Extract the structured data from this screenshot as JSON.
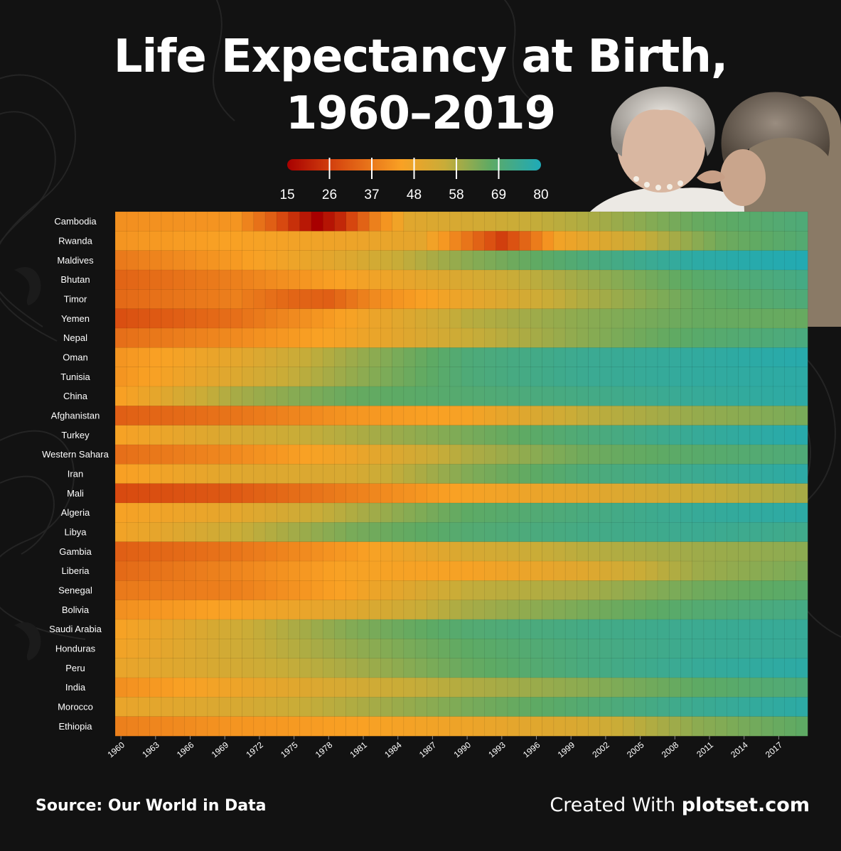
{
  "title": "Life Expectancy at Birth,\n1960–2019",
  "source_text": "Source: Our World in Data",
  "credit_prefix": "Created With ",
  "credit_brand": "plotset.com",
  "colors": {
    "background": "#121212",
    "scale": [
      "#a80000",
      "#d84a10",
      "#f9a124",
      "#c9ac38",
      "#5eaa64",
      "#1eaab8"
    ]
  },
  "chart_data": {
    "type": "heatmap",
    "x_ticks": [
      "1960",
      "1963",
      "1966",
      "1969",
      "1972",
      "1975",
      "1978",
      "1981",
      "1984",
      "1987",
      "1990",
      "1993",
      "1996",
      "1999",
      "2002",
      "2005",
      "2008",
      "2011",
      "2014",
      "2017"
    ],
    "x_start": 1960,
    "x_end": 2019,
    "legend_ticks": [
      "15",
      "26",
      "37",
      "48",
      "58",
      "69",
      "80"
    ],
    "color_range": [
      15,
      80
    ],
    "rows": [
      {
        "country": "Cambodia",
        "anchors": [
          [
            1960,
            41
          ],
          [
            1970,
            42
          ],
          [
            1973,
            32
          ],
          [
            1977,
            15
          ],
          [
            1979,
            22
          ],
          [
            1982,
            38
          ],
          [
            1985,
            50
          ],
          [
            2000,
            58
          ],
          [
            2010,
            66
          ],
          [
            2019,
            70
          ]
        ]
      },
      {
        "country": "Rwanda",
        "anchors": [
          [
            1960,
            42
          ],
          [
            1980,
            47
          ],
          [
            1986,
            49
          ],
          [
            1990,
            36
          ],
          [
            1993,
            26
          ],
          [
            1995,
            33
          ],
          [
            1998,
            46
          ],
          [
            2005,
            55
          ],
          [
            2012,
            65
          ],
          [
            2019,
            69
          ]
        ]
      },
      {
        "country": "Maldives",
        "anchors": [
          [
            1960,
            37
          ],
          [
            1970,
            43
          ],
          [
            1980,
            51
          ],
          [
            1990,
            62
          ],
          [
            2000,
            70
          ],
          [
            2010,
            77
          ],
          [
            2019,
            79
          ]
        ]
      },
      {
        "country": "Bhutan",
        "anchors": [
          [
            1960,
            33
          ],
          [
            1970,
            38
          ],
          [
            1980,
            45
          ],
          [
            1990,
            52
          ],
          [
            2000,
            60
          ],
          [
            2010,
            68
          ],
          [
            2019,
            72
          ]
        ]
      },
      {
        "country": "Timor",
        "anchors": [
          [
            1960,
            34
          ],
          [
            1970,
            38
          ],
          [
            1975,
            33
          ],
          [
            1978,
            32
          ],
          [
            1982,
            40
          ],
          [
            1990,
            48
          ],
          [
            2000,
            58
          ],
          [
            2010,
            66
          ],
          [
            2019,
            70
          ]
        ]
      },
      {
        "country": "Yemen",
        "anchors": [
          [
            1960,
            29
          ],
          [
            1970,
            35
          ],
          [
            1980,
            45
          ],
          [
            1990,
            57
          ],
          [
            2000,
            62
          ],
          [
            2010,
            66
          ],
          [
            2019,
            66
          ]
        ]
      },
      {
        "country": "Nepal",
        "anchors": [
          [
            1960,
            35
          ],
          [
            1970,
            40
          ],
          [
            1980,
            46
          ],
          [
            1990,
            55
          ],
          [
            2000,
            62
          ],
          [
            2010,
            68
          ],
          [
            2019,
            71
          ]
        ]
      },
      {
        "country": "Oman",
        "anchors": [
          [
            1960,
            42
          ],
          [
            1970,
            49
          ],
          [
            1980,
            60
          ],
          [
            1990,
            70
          ],
          [
            2000,
            74
          ],
          [
            2010,
            76
          ],
          [
            2019,
            78
          ]
        ]
      },
      {
        "country": "Tunisia",
        "anchors": [
          [
            1960,
            42
          ],
          [
            1970,
            51
          ],
          [
            1980,
            61
          ],
          [
            1990,
            70
          ],
          [
            2000,
            74
          ],
          [
            2010,
            76
          ],
          [
            2019,
            77
          ]
        ]
      },
      {
        "country": "China",
        "anchors": [
          [
            1960,
            44
          ],
          [
            1965,
            52
          ],
          [
            1970,
            59
          ],
          [
            1980,
            66
          ],
          [
            1990,
            69
          ],
          [
            2000,
            72
          ],
          [
            2010,
            75
          ],
          [
            2019,
            77
          ]
        ]
      },
      {
        "country": "Afghanistan",
        "anchors": [
          [
            1960,
            32
          ],
          [
            1970,
            36
          ],
          [
            1980,
            42
          ],
          [
            1990,
            45
          ],
          [
            2000,
            56
          ],
          [
            2010,
            61
          ],
          [
            2019,
            64
          ]
        ]
      },
      {
        "country": "Turkey",
        "anchors": [
          [
            1960,
            45
          ],
          [
            1970,
            52
          ],
          [
            1980,
            58
          ],
          [
            1990,
            64
          ],
          [
            2000,
            70
          ],
          [
            2010,
            75
          ],
          [
            2019,
            78
          ]
        ]
      },
      {
        "country": "Western Sahara",
        "anchors": [
          [
            1960,
            35
          ],
          [
            1970,
            40
          ],
          [
            1980,
            47
          ],
          [
            1990,
            58
          ],
          [
            2000,
            65
          ],
          [
            2010,
            68
          ],
          [
            2019,
            70
          ]
        ]
      },
      {
        "country": "Iran",
        "anchors": [
          [
            1960,
            44
          ],
          [
            1970,
            50
          ],
          [
            1980,
            52
          ],
          [
            1990,
            63
          ],
          [
            2000,
            70
          ],
          [
            2010,
            74
          ],
          [
            2019,
            77
          ]
        ]
      },
      {
        "country": "Mali",
        "anchors": [
          [
            1960,
            28
          ],
          [
            1970,
            31
          ],
          [
            1980,
            38
          ],
          [
            1990,
            45
          ],
          [
            2000,
            49
          ],
          [
            2010,
            55
          ],
          [
            2019,
            59
          ]
        ]
      },
      {
        "country": "Algeria",
        "anchors": [
          [
            1960,
            45
          ],
          [
            1970,
            49
          ],
          [
            1980,
            58
          ],
          [
            1990,
            67
          ],
          [
            2000,
            71
          ],
          [
            2010,
            75
          ],
          [
            2019,
            77
          ]
        ]
      },
      {
        "country": "Libya",
        "anchors": [
          [
            1960,
            46
          ],
          [
            1970,
            55
          ],
          [
            1980,
            64
          ],
          [
            1990,
            69
          ],
          [
            2000,
            72
          ],
          [
            2010,
            74
          ],
          [
            2019,
            73
          ]
        ]
      },
      {
        "country": "Gambia",
        "anchors": [
          [
            1960,
            32
          ],
          [
            1970,
            36
          ],
          [
            1980,
            43
          ],
          [
            1990,
            52
          ],
          [
            2000,
            57
          ],
          [
            2010,
            60
          ],
          [
            2019,
            62
          ]
        ]
      },
      {
        "country": "Liberia",
        "anchors": [
          [
            1960,
            34
          ],
          [
            1970,
            39
          ],
          [
            1980,
            45
          ],
          [
            1990,
            45
          ],
          [
            2000,
            50
          ],
          [
            2010,
            60
          ],
          [
            2019,
            64
          ]
        ]
      },
      {
        "country": "Senegal",
        "anchors": [
          [
            1960,
            37
          ],
          [
            1970,
            38
          ],
          [
            1980,
            45
          ],
          [
            1990,
            56
          ],
          [
            2000,
            59
          ],
          [
            2010,
            65
          ],
          [
            2019,
            68
          ]
        ]
      },
      {
        "country": "Bolivia",
        "anchors": [
          [
            1960,
            41
          ],
          [
            1970,
            45
          ],
          [
            1980,
            50
          ],
          [
            1990,
            59
          ],
          [
            2000,
            64
          ],
          [
            2010,
            69
          ],
          [
            2019,
            72
          ]
        ]
      },
      {
        "country": "Saudi Arabia",
        "anchors": [
          [
            1960,
            45
          ],
          [
            1970,
            54
          ],
          [
            1980,
            63
          ],
          [
            1990,
            69
          ],
          [
            2000,
            72
          ],
          [
            2010,
            74
          ],
          [
            2019,
            75
          ]
        ]
      },
      {
        "country": "Honduras",
        "anchors": [
          [
            1960,
            46
          ],
          [
            1970,
            54
          ],
          [
            1980,
            61
          ],
          [
            1990,
            67
          ],
          [
            2000,
            71
          ],
          [
            2010,
            74
          ],
          [
            2019,
            75
          ]
        ]
      },
      {
        "country": "Peru",
        "anchors": [
          [
            1960,
            48
          ],
          [
            1970,
            53
          ],
          [
            1980,
            59
          ],
          [
            1990,
            66
          ],
          [
            2000,
            71
          ],
          [
            2010,
            75
          ],
          [
            2019,
            77
          ]
        ]
      },
      {
        "country": "India",
        "anchors": [
          [
            1960,
            41
          ],
          [
            1970,
            47
          ],
          [
            1980,
            53
          ],
          [
            1990,
            58
          ],
          [
            2000,
            62
          ],
          [
            2010,
            67
          ],
          [
            2019,
            70
          ]
        ]
      },
      {
        "country": "Morocco",
        "anchors": [
          [
            1960,
            48
          ],
          [
            1970,
            52
          ],
          [
            1980,
            58
          ],
          [
            1990,
            64
          ],
          [
            2000,
            69
          ],
          [
            2010,
            74
          ],
          [
            2019,
            77
          ]
        ]
      },
      {
        "country": "Ethiopia",
        "anchors": [
          [
            1960,
            38
          ],
          [
            1970,
            42
          ],
          [
            1980,
            44
          ],
          [
            1990,
            47
          ],
          [
            2000,
            52
          ],
          [
            2010,
            62
          ],
          [
            2019,
            67
          ]
        ]
      }
    ]
  }
}
